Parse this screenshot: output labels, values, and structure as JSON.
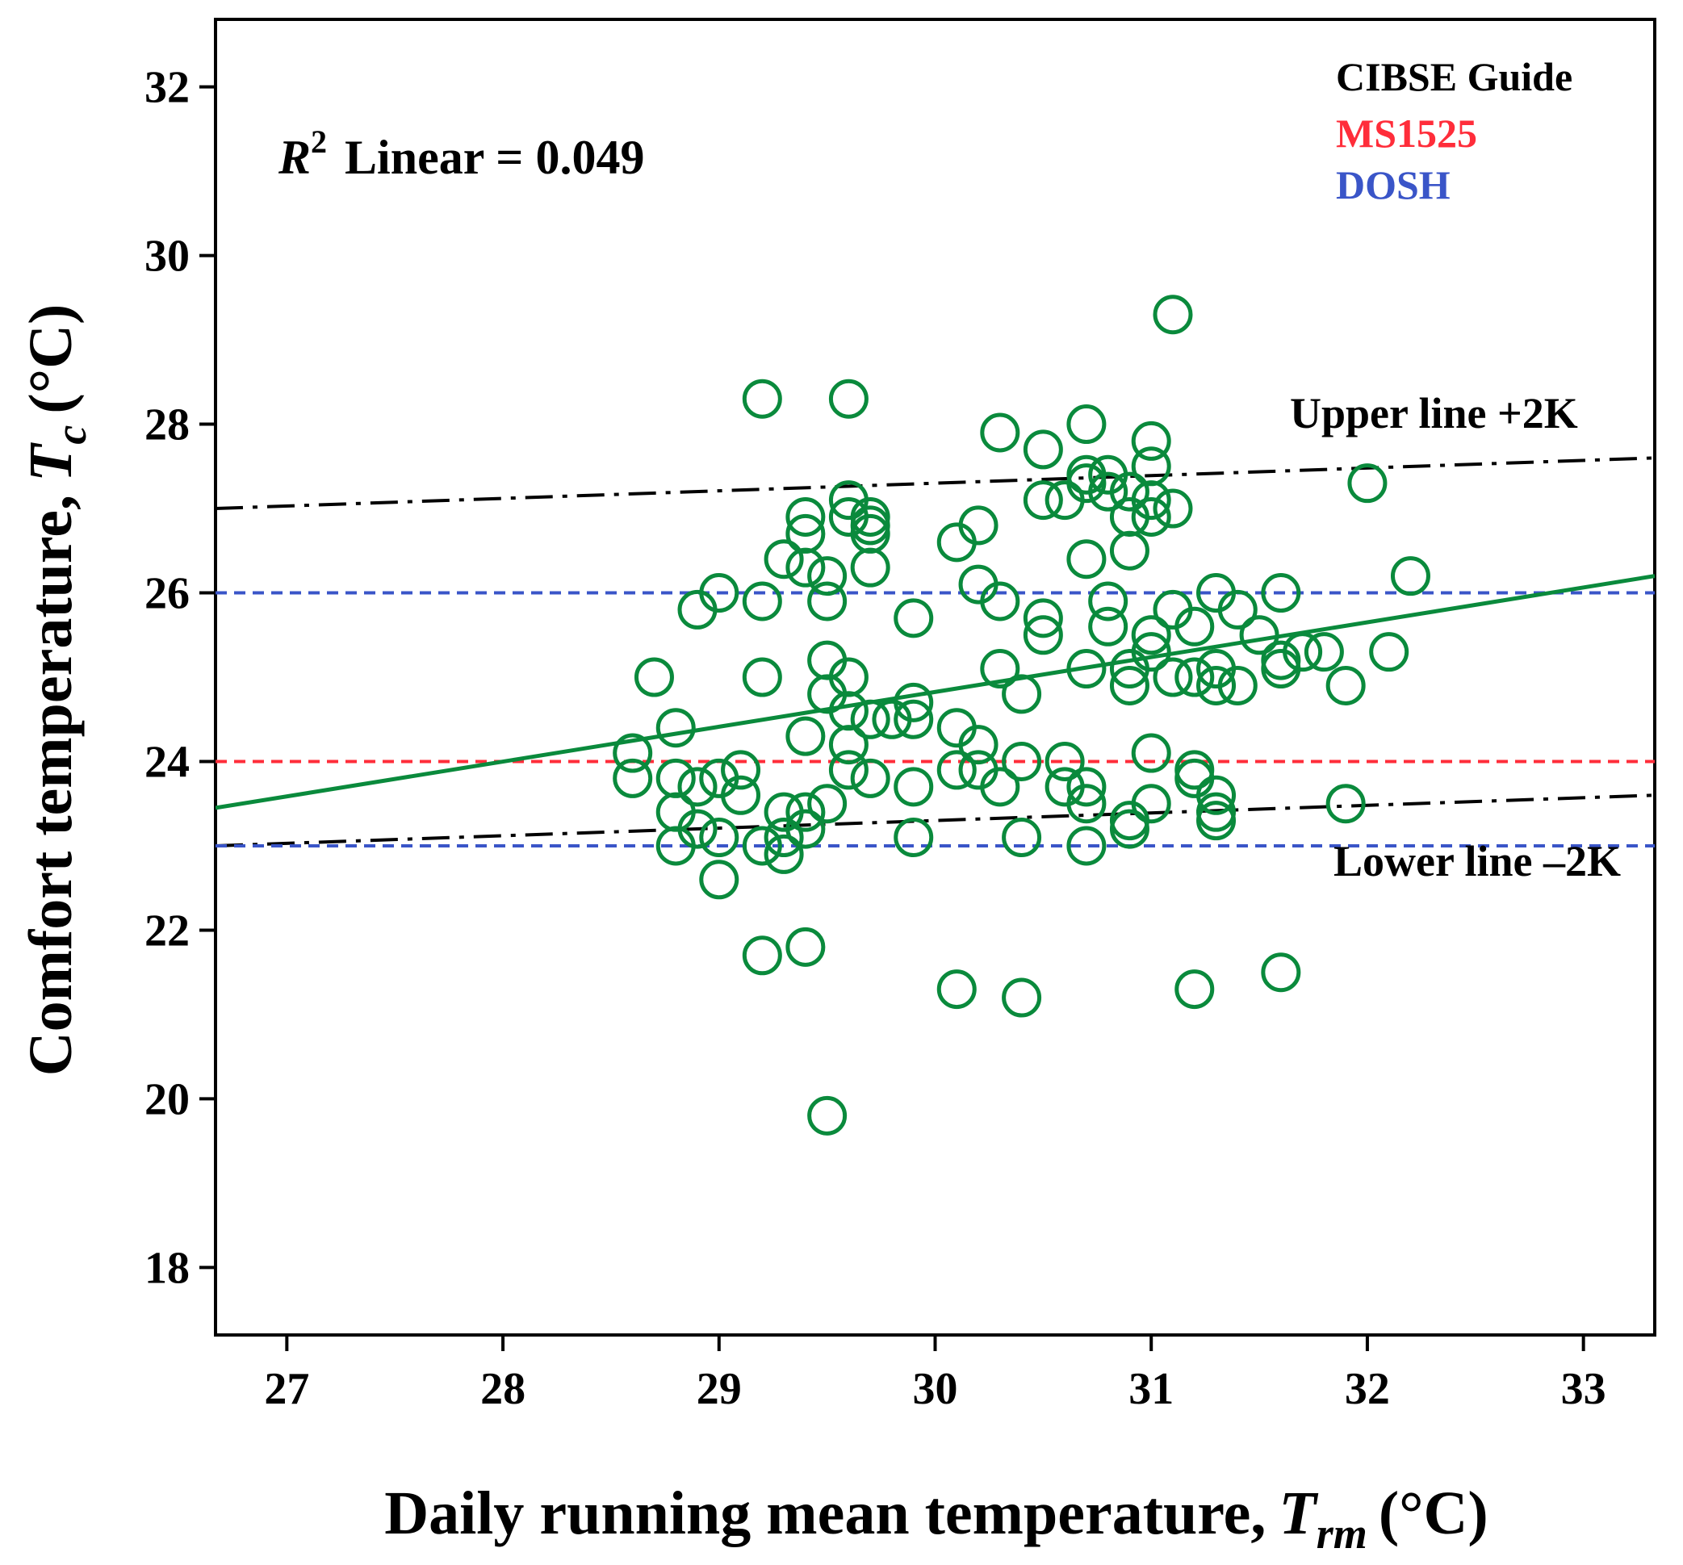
{
  "chart_data": {
    "type": "scatter",
    "xlabel": "Daily running mean temperature,",
    "xlabel_symbol": "T",
    "xlabel_sub": "rm",
    "xlabel_unit": "(°C)",
    "ylabel": "Comfort temperature,",
    "ylabel_symbol": "T",
    "ylabel_sub": "c",
    "ylabel_unit": "(°C)",
    "xlim": [
      26.67,
      33.33
    ],
    "ylim": [
      17.2,
      32.8
    ],
    "xticks": [
      27,
      28,
      29,
      30,
      31,
      32,
      33
    ],
    "yticks": [
      18,
      20,
      22,
      24,
      26,
      28,
      30,
      32
    ],
    "r2_annotation": {
      "symbol": "R",
      "exponent": "2",
      "text": "Linear = 0.049"
    },
    "legend": [
      {
        "label": "CIBSE Guide",
        "color": "#000000"
      },
      {
        "label": "MS1525",
        "color": "#ff2d3a"
      },
      {
        "label": "DOSH",
        "color": "#3a55c8"
      }
    ],
    "marker_color": "#0a8a3c",
    "fit_line": {
      "name": "Linear fit",
      "color": "#0a8a3c",
      "x": [
        26.67,
        33.33
      ],
      "y": [
        23.45,
        26.2
      ]
    },
    "reference_lines": [
      {
        "name": "Upper line +2K",
        "label": "Upper line +2K",
        "color": "#000000",
        "style": "dashdot",
        "x": [
          26.67,
          33.33
        ],
        "y": [
          27.0,
          27.6
        ]
      },
      {
        "name": "Lower line -2K",
        "label": "Lower line –2K",
        "color": "#000000",
        "style": "dashdot",
        "x": [
          26.67,
          33.33
        ],
        "y": [
          23.0,
          23.6
        ]
      },
      {
        "name": "MS1525 upper",
        "color": "#ff2d3a",
        "style": "dashed",
        "x": [
          26.67,
          33.33
        ],
        "y": [
          26.0,
          26.0
        ]
      },
      {
        "name": "MS1525 lower",
        "color": "#ff2d3a",
        "style": "dashed",
        "x": [
          26.67,
          33.33
        ],
        "y": [
          24.0,
          24.0
        ]
      },
      {
        "name": "DOSH upper",
        "color": "#3a55c8",
        "style": "dashed",
        "x": [
          26.67,
          33.33
        ],
        "y": [
          26.0,
          26.0
        ]
      },
      {
        "name": "DOSH lower",
        "color": "#3a55c8",
        "style": "dashed",
        "x": [
          26.67,
          33.33
        ],
        "y": [
          23.0,
          23.0
        ]
      }
    ],
    "series": [
      {
        "name": "Comfort temperature",
        "points": [
          [
            28.6,
            24.1
          ],
          [
            28.6,
            23.8
          ],
          [
            28.7,
            25.0
          ],
          [
            28.8,
            24.4
          ],
          [
            28.8,
            23.8
          ],
          [
            28.8,
            23.4
          ],
          [
            28.8,
            23.0
          ],
          [
            28.9,
            25.8
          ],
          [
            28.9,
            23.7
          ],
          [
            28.9,
            23.2
          ],
          [
            29.0,
            26.0
          ],
          [
            29.0,
            23.8
          ],
          [
            29.0,
            22.6
          ],
          [
            29.0,
            23.1
          ],
          [
            29.1,
            23.9
          ],
          [
            29.1,
            23.6
          ],
          [
            29.2,
            28.3
          ],
          [
            29.2,
            25.9
          ],
          [
            29.2,
            25.0
          ],
          [
            29.2,
            23.0
          ],
          [
            29.2,
            21.7
          ],
          [
            29.3,
            26.4
          ],
          [
            29.3,
            23.4
          ],
          [
            29.3,
            23.1
          ],
          [
            29.3,
            22.9
          ],
          [
            29.4,
            26.9
          ],
          [
            29.4,
            26.7
          ],
          [
            29.4,
            26.3
          ],
          [
            29.4,
            24.3
          ],
          [
            29.4,
            23.4
          ],
          [
            29.4,
            23.2
          ],
          [
            29.4,
            21.8
          ],
          [
            29.5,
            26.2
          ],
          [
            29.5,
            25.9
          ],
          [
            29.5,
            25.2
          ],
          [
            29.5,
            24.8
          ],
          [
            29.5,
            23.5
          ],
          [
            29.5,
            19.8
          ],
          [
            29.6,
            28.3
          ],
          [
            29.6,
            27.1
          ],
          [
            29.6,
            26.9
          ],
          [
            29.6,
            25.0
          ],
          [
            29.6,
            24.6
          ],
          [
            29.6,
            24.2
          ],
          [
            29.6,
            23.9
          ],
          [
            29.7,
            26.9
          ],
          [
            29.7,
            26.8
          ],
          [
            29.7,
            26.7
          ],
          [
            29.7,
            26.3
          ],
          [
            29.7,
            24.5
          ],
          [
            29.7,
            23.8
          ],
          [
            29.8,
            24.5
          ],
          [
            29.9,
            25.7
          ],
          [
            29.9,
            24.7
          ],
          [
            29.9,
            24.5
          ],
          [
            29.9,
            23.7
          ],
          [
            29.9,
            23.1
          ],
          [
            30.1,
            26.6
          ],
          [
            30.1,
            24.4
          ],
          [
            30.1,
            23.9
          ],
          [
            30.1,
            21.3
          ],
          [
            30.2,
            26.8
          ],
          [
            30.2,
            26.1
          ],
          [
            30.2,
            24.2
          ],
          [
            30.2,
            23.9
          ],
          [
            30.3,
            27.9
          ],
          [
            30.3,
            25.9
          ],
          [
            30.3,
            25.1
          ],
          [
            30.3,
            23.7
          ],
          [
            30.4,
            24.8
          ],
          [
            30.4,
            24.0
          ],
          [
            30.4,
            23.1
          ],
          [
            30.4,
            21.2
          ],
          [
            30.5,
            27.7
          ],
          [
            30.5,
            27.1
          ],
          [
            30.5,
            25.7
          ],
          [
            30.5,
            25.5
          ],
          [
            30.6,
            27.1
          ],
          [
            30.6,
            24.0
          ],
          [
            30.6,
            23.7
          ],
          [
            30.7,
            28.0
          ],
          [
            30.7,
            27.4
          ],
          [
            30.7,
            27.3
          ],
          [
            30.7,
            26.4
          ],
          [
            30.7,
            25.1
          ],
          [
            30.7,
            23.7
          ],
          [
            30.7,
            23.5
          ],
          [
            30.7,
            23.0
          ],
          [
            30.8,
            27.4
          ],
          [
            30.8,
            27.2
          ],
          [
            30.8,
            25.9
          ],
          [
            30.8,
            25.6
          ],
          [
            30.9,
            27.2
          ],
          [
            30.9,
            26.9
          ],
          [
            30.9,
            26.5
          ],
          [
            30.9,
            25.1
          ],
          [
            30.9,
            24.9
          ],
          [
            30.9,
            23.3
          ],
          [
            30.9,
            23.2
          ],
          [
            31.0,
            27.8
          ],
          [
            31.0,
            27.5
          ],
          [
            31.0,
            27.1
          ],
          [
            31.0,
            26.9
          ],
          [
            31.0,
            25.5
          ],
          [
            31.0,
            25.3
          ],
          [
            31.0,
            24.1
          ],
          [
            31.0,
            23.5
          ],
          [
            31.1,
            29.3
          ],
          [
            31.1,
            27.0
          ],
          [
            31.1,
            25.8
          ],
          [
            31.1,
            25.0
          ],
          [
            31.2,
            25.6
          ],
          [
            31.2,
            25.0
          ],
          [
            31.2,
            23.9
          ],
          [
            31.2,
            23.8
          ],
          [
            31.2,
            21.3
          ],
          [
            31.3,
            26.0
          ],
          [
            31.3,
            25.1
          ],
          [
            31.3,
            24.9
          ],
          [
            31.3,
            23.6
          ],
          [
            31.3,
            23.4
          ],
          [
            31.3,
            23.3
          ],
          [
            31.4,
            25.8
          ],
          [
            31.4,
            24.9
          ],
          [
            31.5,
            25.5
          ],
          [
            31.6,
            26.0
          ],
          [
            31.6,
            25.2
          ],
          [
            31.6,
            25.1
          ],
          [
            31.6,
            21.5
          ],
          [
            31.7,
            25.3
          ],
          [
            31.8,
            25.3
          ],
          [
            31.9,
            24.9
          ],
          [
            31.9,
            23.5
          ],
          [
            32.0,
            27.3
          ],
          [
            32.1,
            25.3
          ],
          [
            32.2,
            26.2
          ]
        ]
      }
    ]
  }
}
